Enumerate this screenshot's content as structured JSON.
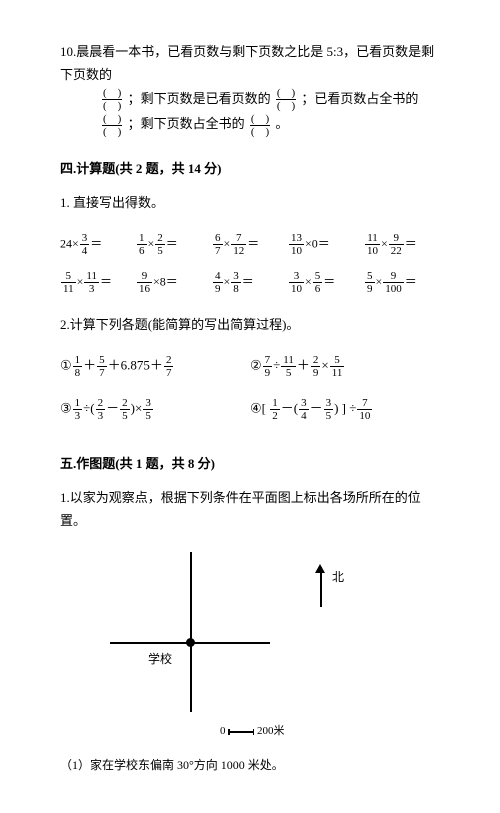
{
  "q10": {
    "prefix": "10.晨晨看一本书，已看页数与剩下页数之比是 5:3，已看页数是剩下页数的",
    "l2a": "；剩下页数是已看页数的",
    "l2b": "；已看页数占全书的",
    "l3a": "；剩下页数占全书的",
    "l3b": "。"
  },
  "sec4": "四.计算题(共 2 题，共 14 分)",
  "q4_1": "1. 直接写出得数。",
  "calc1": {
    "r1": [
      {
        "a": "24×",
        "f": {
          "n": "3",
          "d": "4"
        },
        "b": "＝"
      },
      {
        "f1": {
          "n": "1",
          "d": "6"
        },
        "m": "×",
        "f2": {
          "n": "2",
          "d": "5"
        },
        "b": "＝"
      },
      {
        "f1": {
          "n": "6",
          "d": "7"
        },
        "m": "×",
        "f2": {
          "n": "7",
          "d": "12"
        },
        "b": "＝"
      },
      {
        "f1": {
          "n": "13",
          "d": "10"
        },
        "m": "×0＝"
      },
      {
        "f1": {
          "n": "11",
          "d": "10"
        },
        "m": "×",
        "f2": {
          "n": "9",
          "d": "22"
        },
        "b": "＝"
      }
    ],
    "r2": [
      {
        "f1": {
          "n": "5",
          "d": "11"
        },
        "m": "×",
        "f2": {
          "n": "11",
          "d": "3"
        },
        "b": "＝"
      },
      {
        "f1": {
          "n": "9",
          "d": "16"
        },
        "m": "×8＝"
      },
      {
        "f1": {
          "n": "4",
          "d": "9"
        },
        "m": "×",
        "f2": {
          "n": "3",
          "d": "8"
        },
        "b": "＝"
      },
      {
        "f1": {
          "n": "3",
          "d": "10"
        },
        "m": "×",
        "f2": {
          "n": "5",
          "d": "6"
        },
        "b": "＝"
      },
      {
        "f1": {
          "n": "5",
          "d": "9"
        },
        "m": "×",
        "f2": {
          "n": "9",
          "d": "100"
        },
        "b": "＝"
      }
    ]
  },
  "q4_2": "2.计算下列各题(能简算的写出简算过程)。",
  "calc2": {
    "r1": [
      {
        "p": "①",
        "f1": {
          "n": "1",
          "d": "8"
        },
        "a": "＋",
        "f2": {
          "n": "5",
          "d": "7"
        },
        "b": "＋6.875＋",
        "f3": {
          "n": "2",
          "d": "7"
        }
      },
      {
        "p": "②",
        "f1": {
          "n": "7",
          "d": "9"
        },
        "a": "÷",
        "f2": {
          "n": "11",
          "d": "5"
        },
        "b": "＋",
        "f3": {
          "n": "2",
          "d": "9"
        },
        "c": "×",
        "f4": {
          "n": "5",
          "d": "11"
        }
      }
    ],
    "r2": [
      {
        "p": "③",
        "f1": {
          "n": "1",
          "d": "3"
        },
        "a": "÷(",
        "f2": {
          "n": "2",
          "d": "3"
        },
        "b": "－",
        "f3": {
          "n": "2",
          "d": "5"
        },
        "c": ")×",
        "f4": {
          "n": "3",
          "d": "5"
        }
      },
      {
        "p": "④[ ",
        "f1": {
          "n": "1",
          "d": "2"
        },
        "a": "－(",
        "f2": {
          "n": "3",
          "d": "4"
        },
        "b": "－",
        "f3": {
          "n": "3",
          "d": "5"
        },
        "c": ") ] ÷",
        "f4": {
          "n": "7",
          "d": "10"
        }
      }
    ]
  },
  "sec5": "五.作图题(共 1 题，共 8 分)",
  "q5_1": "1.以家为观察点，根据下列条件在平面图上标出各场所所在的位置。",
  "school": "学校",
  "north": "北",
  "scale": {
    "a": "0",
    "b": "200米"
  },
  "q5_1_1": "（1）家在学校东偏南 30°方向 1000 米处。"
}
